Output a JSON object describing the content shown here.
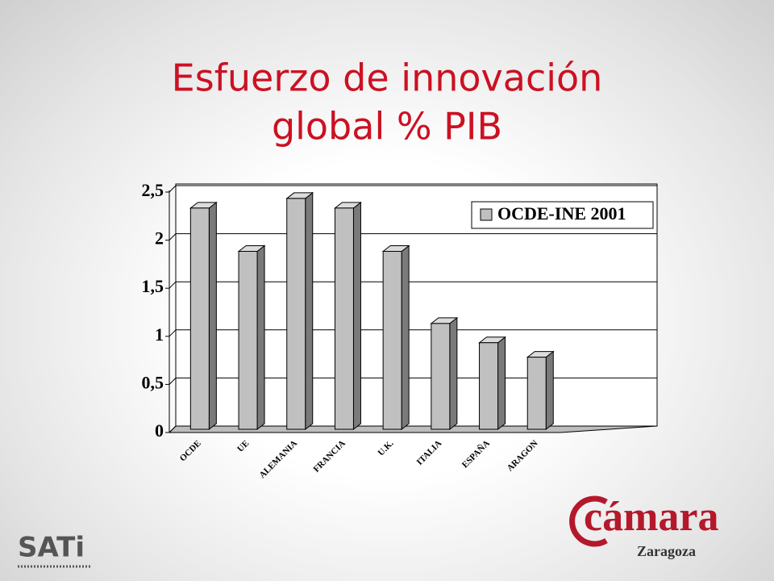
{
  "chart_data": {
    "type": "bar",
    "title": "Esfuerzo de innovación",
    "subtitle": "global % PIB",
    "categories": [
      "OCDE",
      "UE",
      "ALEMANIA",
      "FRANCIA",
      "U.K.",
      "ITALIA",
      "ESPAÑA",
      "ARAGON"
    ],
    "series": [
      {
        "name": "OCDE-INE 2001",
        "color": "#c0c0c0",
        "values": [
          2.3,
          1.85,
          2.4,
          2.3,
          1.85,
          1.1,
          0.9,
          0.75
        ]
      }
    ],
    "ylim": [
      0,
      2.5
    ],
    "yticks": [
      0,
      {
        "value": 0.5,
        "label": "0,5"
      },
      1,
      {
        "value": 1.5,
        "label": "1,5"
      },
      2,
      {
        "value": 2.5,
        "label": "2,5"
      }
    ],
    "grid": true,
    "legend": "top-right"
  },
  "logos": {
    "left": "SATi",
    "right": "cámara",
    "right_sub": "Zaragoza"
  }
}
